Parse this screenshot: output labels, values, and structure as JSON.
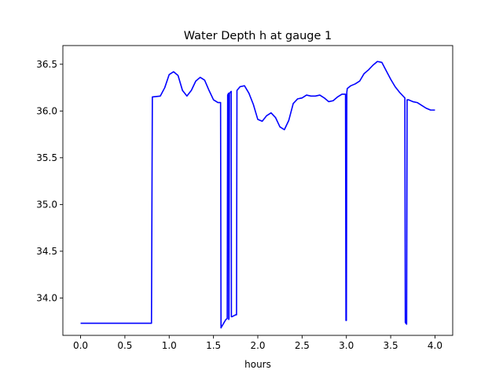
{
  "chart_data": {
    "type": "line",
    "title": "Water Depth h at gauge 1",
    "xlabel": "hours",
    "ylabel": "",
    "xlim": [
      -0.2,
      4.2
    ],
    "ylim": [
      33.6,
      36.7
    ],
    "xticks": [
      0.0,
      0.5,
      1.0,
      1.5,
      2.0,
      2.5,
      3.0,
      3.5,
      4.0
    ],
    "xtick_labels": [
      "0.0",
      "0.5",
      "1.0",
      "1.5",
      "2.0",
      "2.5",
      "3.0",
      "3.5",
      "4.0"
    ],
    "yticks": [
      34.0,
      34.5,
      35.0,
      35.5,
      36.0,
      36.5
    ],
    "ytick_labels": [
      "34.0",
      "34.5",
      "35.0",
      "35.5",
      "36.0",
      "36.5"
    ],
    "grid": false,
    "series": [
      {
        "color": "#0000ff",
        "x": [
          0.0,
          0.4,
          0.79,
          0.8,
          0.81,
          0.9,
          0.95,
          1.0,
          1.05,
          1.1,
          1.15,
          1.2,
          1.25,
          1.3,
          1.35,
          1.4,
          1.45,
          1.5,
          1.55,
          1.58,
          1.585,
          1.59,
          1.64,
          1.655,
          1.66,
          1.67,
          1.672,
          1.675,
          1.68,
          1.7,
          1.702,
          1.705,
          1.71,
          1.75,
          1.76,
          1.765,
          1.8,
          1.85,
          1.9,
          1.95,
          2.0,
          2.05,
          2.1,
          2.15,
          2.2,
          2.25,
          2.3,
          2.35,
          2.4,
          2.45,
          2.5,
          2.55,
          2.6,
          2.65,
          2.7,
          2.75,
          2.8,
          2.85,
          2.9,
          2.95,
          2.99,
          2.995,
          3.0,
          3.005,
          3.01,
          3.05,
          3.1,
          3.15,
          3.2,
          3.25,
          3.3,
          3.35,
          3.4,
          3.45,
          3.5,
          3.55,
          3.6,
          3.66,
          3.665,
          3.67,
          3.68,
          3.685,
          3.69,
          3.7,
          3.75,
          3.8,
          3.85,
          3.9,
          3.95,
          4.0
        ],
        "y": [
          33.73,
          33.73,
          33.73,
          33.73,
          36.15,
          36.16,
          36.25,
          36.39,
          36.42,
          36.38,
          36.22,
          36.16,
          36.22,
          36.32,
          36.36,
          36.33,
          36.22,
          36.12,
          36.09,
          36.09,
          33.68,
          33.69,
          33.77,
          33.78,
          36.17,
          36.19,
          33.77,
          33.78,
          36.19,
          36.21,
          33.8,
          33.8,
          33.8,
          33.82,
          33.82,
          36.22,
          36.26,
          36.27,
          36.19,
          36.07,
          35.91,
          35.89,
          35.95,
          35.98,
          35.93,
          35.83,
          35.8,
          35.9,
          36.08,
          36.13,
          36.14,
          36.17,
          36.16,
          36.16,
          36.17,
          36.14,
          36.1,
          36.11,
          36.15,
          36.18,
          36.18,
          33.76,
          33.76,
          36.2,
          36.24,
          36.27,
          36.29,
          36.32,
          36.4,
          36.44,
          36.49,
          36.53,
          36.52,
          36.43,
          36.34,
          36.26,
          36.2,
          36.14,
          33.74,
          33.73,
          33.72,
          36.12,
          36.12,
          36.12,
          36.1,
          36.09,
          36.06,
          36.03,
          36.01,
          36.01
        ]
      }
    ]
  }
}
